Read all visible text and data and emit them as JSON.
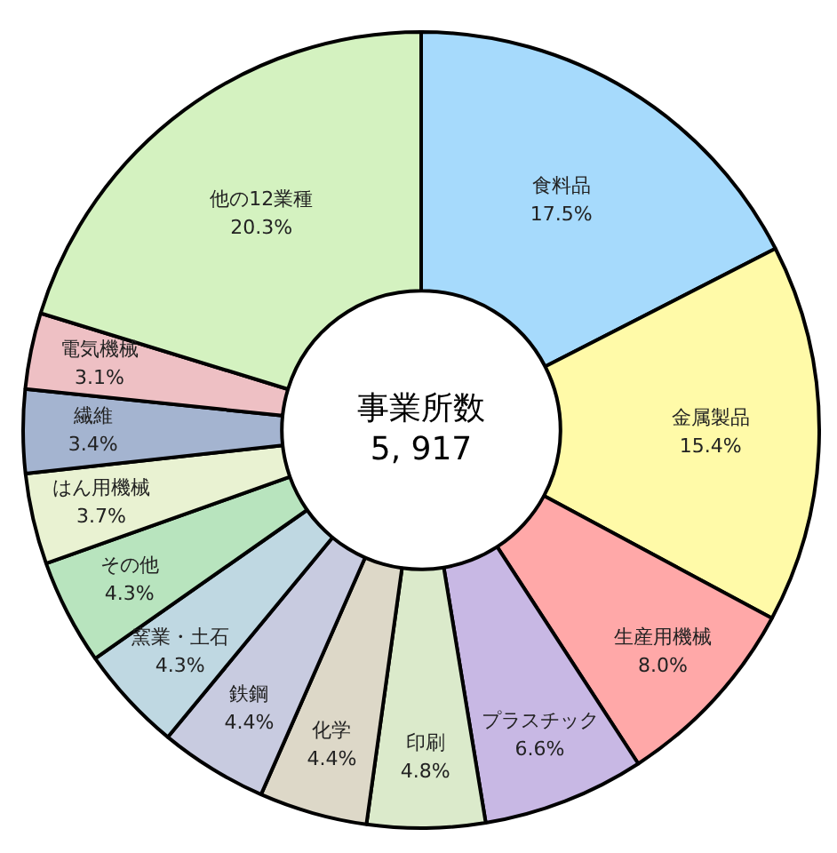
{
  "chart_data": {
    "type": "donut",
    "title": "事業所数",
    "subtitle": "5, 917",
    "categories": [
      "食料品",
      "金属製品",
      "生産用機械",
      "プラスチック",
      "印刷",
      "化学",
      "鉄鋼",
      "窯業・土石",
      "その他",
      "はん用機械",
      "繊維",
      "電気機械",
      "他の12業種"
    ],
    "values": [
      17.5,
      15.4,
      8.0,
      6.6,
      4.8,
      4.4,
      4.4,
      4.3,
      4.3,
      3.7,
      3.4,
      3.1,
      20.3
    ],
    "value_labels": [
      "17.5%",
      "15.4%",
      "8.0%",
      "6.6%",
      "4.8%",
      "4.4%",
      "4.4%",
      "4.3%",
      "4.3%",
      "3.7%",
      "3.4%",
      "3.1%",
      "20.3%"
    ],
    "colors": [
      "#a6dafc",
      "#fffaa8",
      "#ffa8a8",
      "#c8b8e4",
      "#dbeacb",
      "#ddd8c8",
      "#c8cbe0",
      "#bfd8e2",
      "#b8e4be",
      "#e9f2d2",
      "#a4b4d0",
      "#eec0c4",
      "#d4f2c0"
    ]
  }
}
